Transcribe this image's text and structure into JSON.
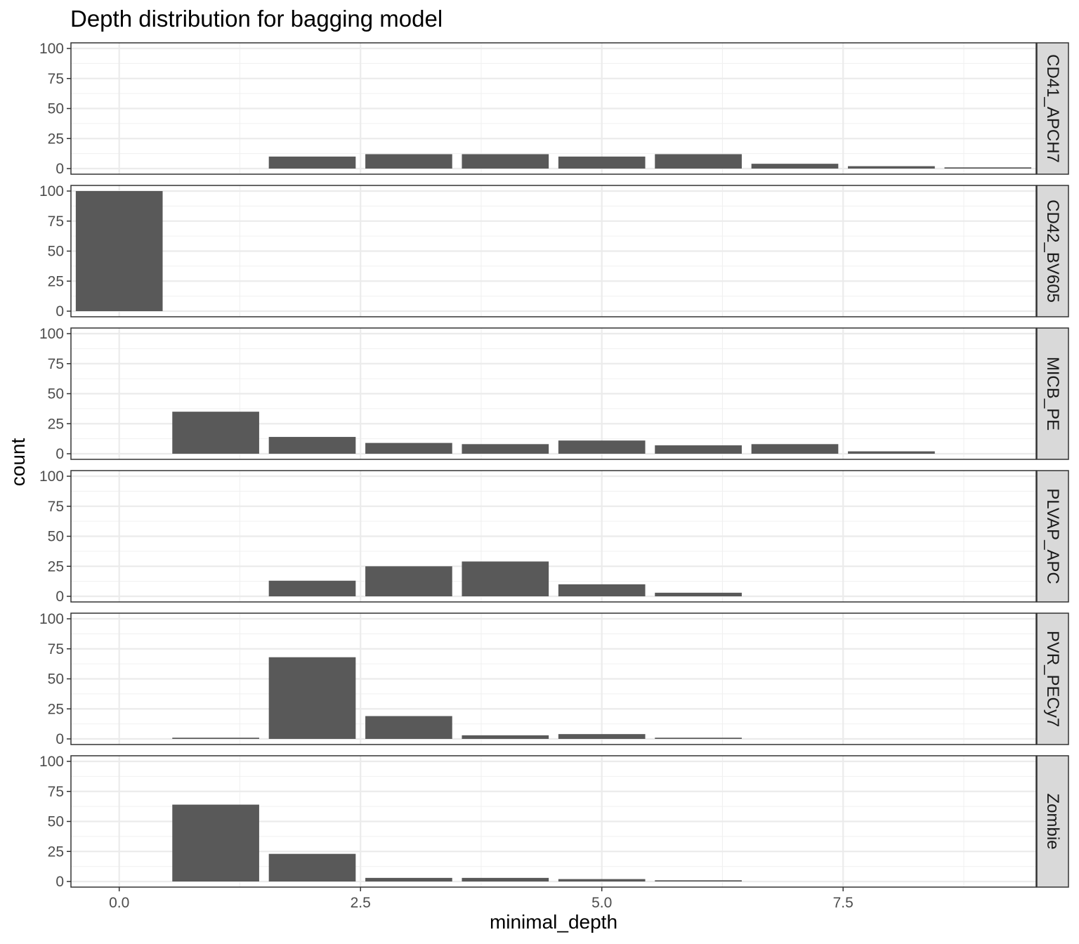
{
  "chart_data": {
    "type": "bar",
    "title": "Depth distribution for bagging model",
    "xlabel": "minimal_depth",
    "ylabel": "count",
    "xlim": [
      -0.5,
      9.5
    ],
    "ylim": [
      0,
      100
    ],
    "x_ticks": [
      "0.0",
      "2.5",
      "5.0",
      "7.5"
    ],
    "y_ticks": [
      "0",
      "25",
      "50",
      "75",
      "100"
    ],
    "grid": true,
    "bar_color": "#595959",
    "facets": [
      {
        "label": "CD41_APCH7",
        "bars": [
          {
            "x": 2,
            "count": 10
          },
          {
            "x": 3,
            "count": 12
          },
          {
            "x": 4,
            "count": 12
          },
          {
            "x": 5,
            "count": 10
          },
          {
            "x": 6,
            "count": 12
          },
          {
            "x": 7,
            "count": 4
          },
          {
            "x": 8,
            "count": 2
          },
          {
            "x": 9,
            "count": 1
          }
        ]
      },
      {
        "label": "CD42_BV605",
        "bars": [
          {
            "x": 0,
            "count": 100
          }
        ]
      },
      {
        "label": "MICB_PE",
        "bars": [
          {
            "x": 1,
            "count": 35
          },
          {
            "x": 2,
            "count": 14
          },
          {
            "x": 3,
            "count": 9
          },
          {
            "x": 4,
            "count": 8
          },
          {
            "x": 5,
            "count": 11
          },
          {
            "x": 6,
            "count": 7
          },
          {
            "x": 7,
            "count": 8
          },
          {
            "x": 8,
            "count": 2
          }
        ]
      },
      {
        "label": "PLVAP_APC",
        "bars": [
          {
            "x": 2,
            "count": 13
          },
          {
            "x": 3,
            "count": 25
          },
          {
            "x": 4,
            "count": 29
          },
          {
            "x": 5,
            "count": 10
          },
          {
            "x": 6,
            "count": 3
          }
        ]
      },
      {
        "label": "PVR_PECy7",
        "bars": [
          {
            "x": 1,
            "count": 1
          },
          {
            "x": 2,
            "count": 68
          },
          {
            "x": 3,
            "count": 19
          },
          {
            "x": 4,
            "count": 3
          },
          {
            "x": 5,
            "count": 4
          },
          {
            "x": 6,
            "count": 1
          }
        ]
      },
      {
        "label": "Zombie",
        "bars": [
          {
            "x": 1,
            "count": 64
          },
          {
            "x": 2,
            "count": 23
          },
          {
            "x": 3,
            "count": 3
          },
          {
            "x": 4,
            "count": 3
          },
          {
            "x": 5,
            "count": 2
          },
          {
            "x": 6,
            "count": 1
          }
        ]
      }
    ]
  }
}
